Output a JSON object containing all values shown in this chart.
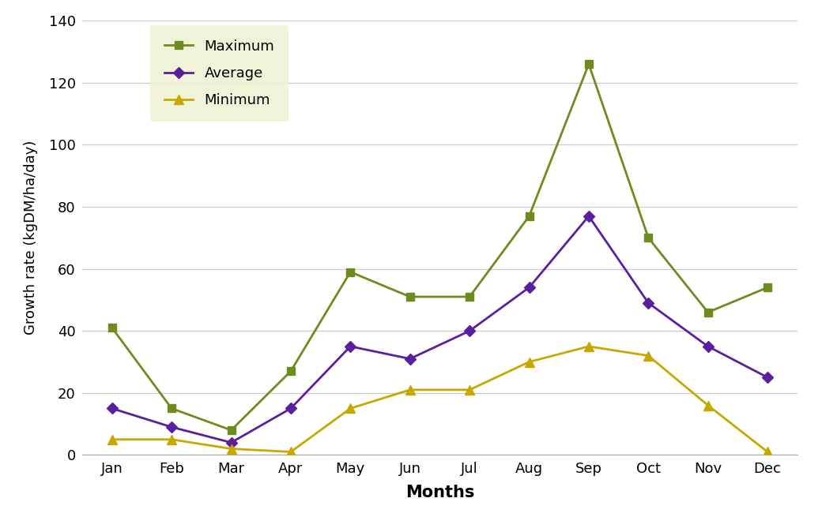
{
  "months": [
    "Jan",
    "Feb",
    "Mar",
    "Apr",
    "May",
    "Jun",
    "Jul",
    "Aug",
    "Sep",
    "Oct",
    "Nov",
    "Dec"
  ],
  "maximum": [
    41,
    15,
    8,
    27,
    59,
    51,
    51,
    77,
    126,
    70,
    46,
    54
  ],
  "average": [
    15,
    9,
    4,
    15,
    35,
    31,
    40,
    54,
    77,
    49,
    35,
    25
  ],
  "minimum": [
    5,
    5,
    2,
    1,
    15,
    21,
    21,
    30,
    35,
    32,
    16,
    1
  ],
  "max_color": "#6e8b1e",
  "avg_color": "#5b1e9e",
  "min_color": "#c8a800",
  "ylabel": "Growth rate (kgDM/ha/day)",
  "xlabel": "Months",
  "ylim": [
    0,
    140
  ],
  "yticks": [
    0,
    20,
    40,
    60,
    80,
    100,
    120,
    140
  ],
  "legend_bg_color": "#eef0d0",
  "background_color": "#ffffff",
  "grid_color": "#cccccc"
}
